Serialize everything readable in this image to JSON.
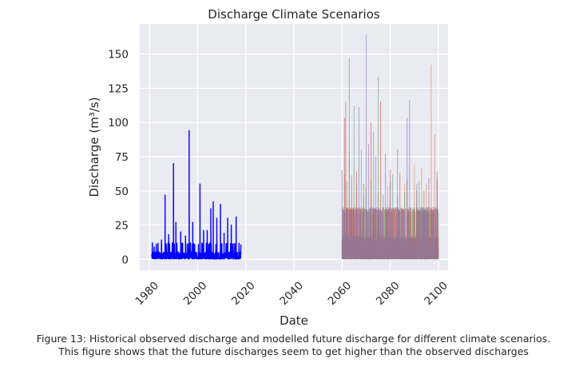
{
  "chart_data": {
    "type": "line",
    "title": "Discharge Climate Scenarios",
    "xlabel": "Date",
    "ylabel": "Discharge (m³/s)",
    "xlim": [
      1976,
      2104
    ],
    "ylim": [
      -8,
      172
    ],
    "x_ticks": [
      "1980",
      "2000",
      "2020",
      "2040",
      "2060",
      "2080",
      "2100"
    ],
    "y_ticks": [
      "0",
      "25",
      "50",
      "75",
      "100",
      "125",
      "150"
    ],
    "grid": true,
    "background": "#eaeaf2",
    "series": [
      {
        "color": "#0000ff",
        "opacity": 1,
        "x_range": [
          1981,
          2018
        ],
        "points": [
          [
            1981.5,
            2
          ],
          [
            1982,
            9
          ],
          [
            1983,
            5
          ],
          [
            1985,
            14
          ],
          [
            1986.5,
            47
          ],
          [
            1988,
            18
          ],
          [
            1990,
            70
          ],
          [
            1991,
            27
          ],
          [
            1993,
            20
          ],
          [
            1995,
            17
          ],
          [
            1996.5,
            94
          ],
          [
            1998,
            27
          ],
          [
            2001,
            55
          ],
          [
            2002.5,
            21
          ],
          [
            2004,
            21
          ],
          [
            2005.5,
            37
          ],
          [
            2006.5,
            42
          ],
          [
            2008,
            30
          ],
          [
            2009.5,
            40
          ],
          [
            2011,
            19
          ],
          [
            2012.5,
            30
          ],
          [
            2014,
            25
          ],
          [
            2016,
            31
          ],
          [
            2017.5,
            5
          ]
        ]
      },
      {
        "color": "#dd8452",
        "opacity": 0.55,
        "x_range": [
          2060,
          2100
        ],
        "points": [
          [
            2061,
            62
          ],
          [
            2063,
            79
          ],
          [
            2066,
            55
          ],
          [
            2069,
            44
          ],
          [
            2072,
            58
          ],
          [
            2075,
            48
          ],
          [
            2079,
            53
          ],
          [
            2083,
            46
          ],
          [
            2086,
            55
          ],
          [
            2090,
            69
          ],
          [
            2093,
            67
          ],
          [
            2095,
            55
          ],
          [
            2097,
            142
          ],
          [
            2098.5,
            91
          ],
          [
            2099.5,
            60
          ]
        ]
      },
      {
        "color": "#55a868",
        "opacity": 0.55,
        "x_range": [
          2060,
          2100
        ],
        "points": [
          [
            2062,
            57
          ],
          [
            2063,
            147
          ],
          [
            2065,
            112
          ],
          [
            2068,
            80
          ],
          [
            2070,
            51
          ],
          [
            2073,
            93
          ],
          [
            2075,
            133
          ],
          [
            2077,
            47
          ],
          [
            2081,
            62
          ],
          [
            2086,
            49
          ],
          [
            2092,
            57
          ]
        ]
      },
      {
        "color": "#c44e52",
        "opacity": 0.55,
        "x_range": [
          2060,
          2100
        ],
        "points": [
          [
            2061,
            103
          ],
          [
            2061.5,
            115
          ],
          [
            2064,
            61
          ],
          [
            2066,
            64
          ],
          [
            2069,
            55
          ],
          [
            2072,
            100
          ],
          [
            2076,
            115
          ],
          [
            2080,
            65
          ],
          [
            2084,
            63
          ],
          [
            2087,
            58
          ],
          [
            2091,
            50
          ],
          [
            2094,
            50
          ],
          [
            2098,
            38
          ],
          [
            2099.5,
            58
          ]
        ]
      },
      {
        "color": "#8172b3",
        "opacity": 0.55,
        "x_range": [
          2060,
          2100
        ],
        "points": [
          [
            2060,
            65
          ],
          [
            2067,
            111
          ],
          [
            2070,
            164
          ],
          [
            2071,
            84
          ],
          [
            2074,
            75
          ],
          [
            2078,
            77
          ],
          [
            2080,
            56
          ],
          [
            2083,
            80
          ],
          [
            2087,
            103
          ],
          [
            2088,
            116
          ],
          [
            2091,
            55
          ],
          [
            2096,
            59
          ],
          [
            2099.5,
            64
          ]
        ]
      }
    ]
  },
  "caption": {
    "line1": "Figure 13: Historical observed discharge and modelled future discharge for different climate scenarios.",
    "line2": "This figure shows that the future discharges seem to get higher than the observed discharges"
  }
}
